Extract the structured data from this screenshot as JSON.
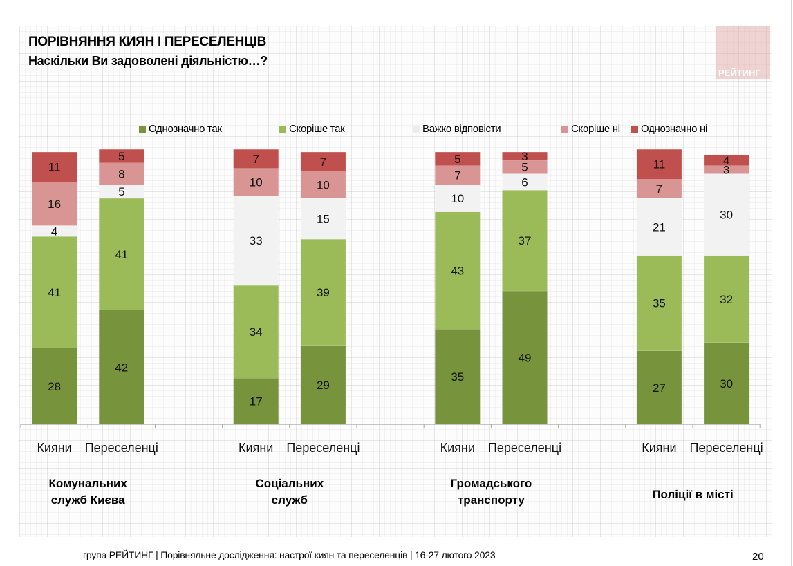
{
  "header": {
    "title": "ПОРІВНЯННЯ КИЯН І ПЕРЕСЕЛЕНЦІВ",
    "subtitle": "Наскільки Ви задоволені діяльністю…?",
    "logo_text": "РЕЙТИНГ"
  },
  "footer": {
    "text": "група РЕЙТИНГ | Порівняльне дослідження: настрої киян та переселенців | 16-27 лютого 2023",
    "page_number": "20"
  },
  "colors": {
    "definitely_yes": "#77933c",
    "rather_yes": "#9bbb59",
    "hard_to_say": "#f2f2f2",
    "rather_no": "#d99594",
    "definitely_no": "#c0504d"
  },
  "chart_data": {
    "type": "bar",
    "stacked": true,
    "title": "Наскільки Ви задоволені діяльністю…?",
    "ylim": [
      0,
      100
    ],
    "grid": false,
    "legend_position": "top",
    "legend": [
      {
        "key": "definitely_yes",
        "label": "Однозначно так"
      },
      {
        "key": "rather_yes",
        "label": "Скоріше так"
      },
      {
        "key": "hard_to_say",
        "label": "Важко відповісти"
      },
      {
        "key": "rather_no",
        "label": "Скоріше ні"
      },
      {
        "key": "definitely_no",
        "label": "Однозначно ні"
      }
    ],
    "groups": [
      {
        "label_lines": [
          "Комунальних",
          "служб Києва"
        ],
        "bars": [
          {
            "category": "Кияни",
            "values": [
              28,
              41,
              4,
              16,
              11
            ]
          },
          {
            "category": "Переселенці",
            "values": [
              42,
              41,
              5,
              8,
              5
            ]
          }
        ]
      },
      {
        "label_lines": [
          "Соціальних",
          "служб"
        ],
        "bars": [
          {
            "category": "Кияни",
            "values": [
              17,
              34,
              33,
              10,
              7
            ]
          },
          {
            "category": "Переселенці",
            "values": [
              29,
              39,
              15,
              10,
              7
            ]
          }
        ]
      },
      {
        "label_lines": [
          "Громадського",
          "транспорту"
        ],
        "bars": [
          {
            "category": "Кияни",
            "values": [
              35,
              43,
              10,
              7,
              5
            ]
          },
          {
            "category": "Переселенці",
            "values": [
              49,
              37,
              6,
              5,
              3
            ]
          }
        ]
      },
      {
        "label_lines": [
          "Поліції в місті"
        ],
        "bars": [
          {
            "category": "Кияни",
            "values": [
              27,
              35,
              21,
              7,
              11
            ]
          },
          {
            "category": "Переселенці",
            "values": [
              30,
              32,
              30,
              3,
              4
            ]
          }
        ]
      }
    ]
  }
}
